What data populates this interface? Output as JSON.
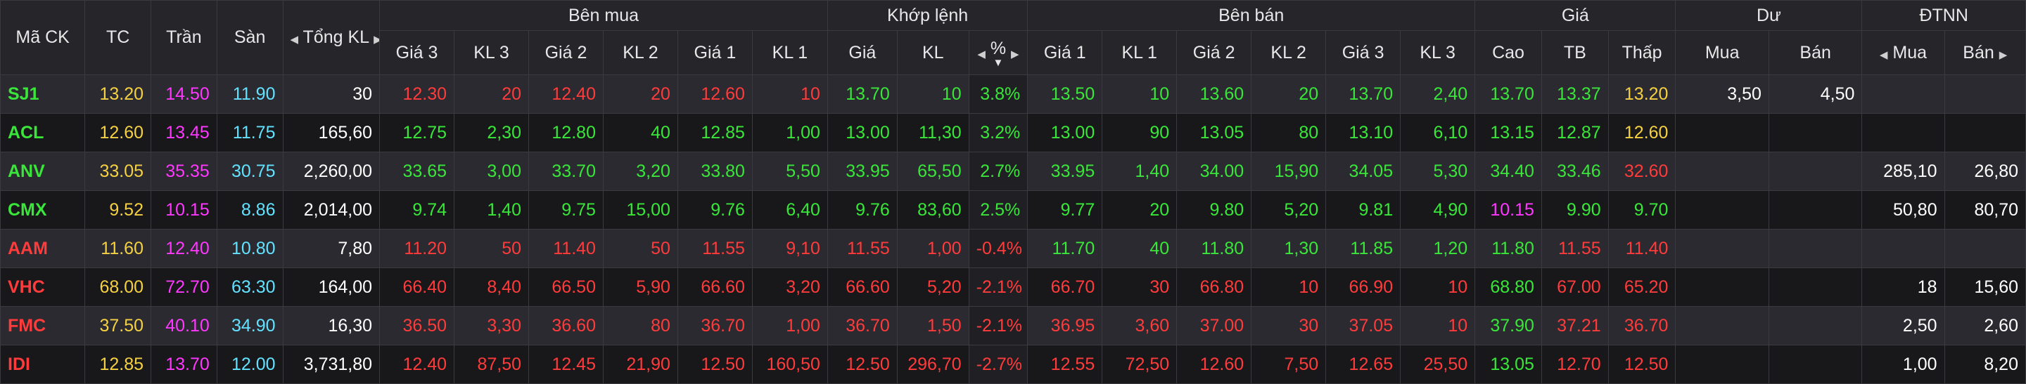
{
  "header": {
    "ma_ck": "Mã CK",
    "tc": "TC",
    "tran": "Trần",
    "san": "Sàn",
    "tong_kl": "Tổng KL",
    "ben_mua": "Bên mua",
    "khop_lenh": "Khớp lệnh",
    "ben_ban": "Bên bán",
    "gia": "Giá",
    "du": "Dư",
    "dtnn": "ĐTNN",
    "buy_cols": [
      "Giá 3",
      "KL 3",
      "Giá 2",
      "KL 2",
      "Giá 1",
      "KL 1"
    ],
    "match_gia": "Giá",
    "match_kl": "KL",
    "match_pct": "%",
    "sell_cols": [
      "Giá 1",
      "KL 1",
      "Giá 2",
      "KL 2",
      "Giá 3",
      "KL 3"
    ],
    "price_cols": [
      "Cao",
      "TB",
      "Thấp"
    ],
    "du_mua": "Mua",
    "du_ban": "Bán",
    "dtnn_mua": "Mua",
    "dtnn_ban": "Bán"
  },
  "colors": {
    "green": "#39e639",
    "red": "#ff3b3b",
    "yellow": "#f5d142",
    "purple": "#ff37ff",
    "cyan": "#62e2ff",
    "white": "#ffffff"
  },
  "rows": [
    {
      "sym": "SJ1",
      "tc": "13.20",
      "tran": "14.50",
      "san": "11.90",
      "tong_kl": "30",
      "b_g3": "12.30",
      "b_k3": "20",
      "b_g2": "12.40",
      "b_k2": "20",
      "b_g1": "12.60",
      "b_k1": "10",
      "m_g": "13.70",
      "m_k": "10",
      "m_p": "3.8%",
      "s_g1": "13.50",
      "s_k1": "10",
      "s_g2": "13.60",
      "s_k2": "20",
      "s_g3": "13.70",
      "s_k3": "2,40",
      "cao": "13.70",
      "tb": "13.37",
      "thap": "13.20",
      "du_mua": "3,50",
      "du_ban": "4,50",
      "nn_mua": "",
      "nn_ban": "",
      "c": {
        "sym": "green",
        "buy": "red",
        "match": "green",
        "sell": "green",
        "cao": "green",
        "tb": "green",
        "thap": "yellow"
      }
    },
    {
      "sym": "ACL",
      "tc": "12.60",
      "tran": "13.45",
      "san": "11.75",
      "tong_kl": "165,60",
      "b_g3": "12.75",
      "b_k3": "2,30",
      "b_g2": "12.80",
      "b_k2": "40",
      "b_g1": "12.85",
      "b_k1": "1,00",
      "m_g": "13.00",
      "m_k": "11,30",
      "m_p": "3.2%",
      "s_g1": "13.00",
      "s_k1": "90",
      "s_g2": "13.05",
      "s_k2": "80",
      "s_g3": "13.10",
      "s_k3": "6,10",
      "cao": "13.15",
      "tb": "12.87",
      "thap": "12.60",
      "du_mua": "",
      "du_ban": "",
      "nn_mua": "",
      "nn_ban": "",
      "c": {
        "sym": "green",
        "buy": "green",
        "match": "green",
        "sell": "green",
        "cao": "green",
        "tb": "green",
        "thap": "yellow"
      }
    },
    {
      "sym": "ANV",
      "tc": "33.05",
      "tran": "35.35",
      "san": "30.75",
      "tong_kl": "2,260,00",
      "b_g3": "33.65",
      "b_k3": "3,00",
      "b_g2": "33.70",
      "b_k2": "3,20",
      "b_g1": "33.80",
      "b_k1": "5,50",
      "m_g": "33.95",
      "m_k": "65,50",
      "m_p": "2.7%",
      "s_g1": "33.95",
      "s_k1": "1,40",
      "s_g2": "34.00",
      "s_k2": "15,90",
      "s_g3": "34.05",
      "s_k3": "5,30",
      "cao": "34.40",
      "tb": "33.46",
      "thap": "32.60",
      "du_mua": "",
      "du_ban": "",
      "nn_mua": "285,10",
      "nn_ban": "26,80",
      "c": {
        "sym": "green",
        "buy": "green",
        "match": "green",
        "sell": "green",
        "cao": "green",
        "tb": "green",
        "thap": "red"
      }
    },
    {
      "sym": "CMX",
      "tc": "9.52",
      "tran": "10.15",
      "san": "8.86",
      "tong_kl": "2,014,00",
      "b_g3": "9.74",
      "b_k3": "1,40",
      "b_g2": "9.75",
      "b_k2": "15,00",
      "b_g1": "9.76",
      "b_k1": "6,40",
      "m_g": "9.76",
      "m_k": "83,60",
      "m_p": "2.5%",
      "s_g1": "9.77",
      "s_k1": "20",
      "s_g2": "9.80",
      "s_k2": "5,20",
      "s_g3": "9.81",
      "s_k3": "4,90",
      "cao": "10.15",
      "tb": "9.90",
      "thap": "9.70",
      "du_mua": "",
      "du_ban": "",
      "nn_mua": "50,80",
      "nn_ban": "80,70",
      "c": {
        "sym": "green",
        "buy": "green",
        "match": "green",
        "sell": "green",
        "cao": "purple",
        "tb": "green",
        "thap": "green"
      }
    },
    {
      "sym": "AAM",
      "tc": "11.60",
      "tran": "12.40",
      "san": "10.80",
      "tong_kl": "7,80",
      "b_g3": "11.20",
      "b_k3": "50",
      "b_g2": "11.40",
      "b_k2": "50",
      "b_g1": "11.55",
      "b_k1": "9,10",
      "m_g": "11.55",
      "m_k": "1,00",
      "m_p": "-0.4%",
      "s_g1": "11.70",
      "s_k1": "40",
      "s_g2": "11.80",
      "s_k2": "1,30",
      "s_g3": "11.85",
      "s_k3": "1,20",
      "cao": "11.80",
      "tb": "11.55",
      "thap": "11.40",
      "du_mua": "",
      "du_ban": "",
      "nn_mua": "",
      "nn_ban": "",
      "c": {
        "sym": "red",
        "buy": "red",
        "match": "red",
        "sell": "green",
        "cao": "green",
        "tb": "red",
        "thap": "red"
      }
    },
    {
      "sym": "VHC",
      "tc": "68.00",
      "tran": "72.70",
      "san": "63.30",
      "tong_kl": "164,00",
      "b_g3": "66.40",
      "b_k3": "8,40",
      "b_g2": "66.50",
      "b_k2": "5,90",
      "b_g1": "66.60",
      "b_k1": "3,20",
      "m_g": "66.60",
      "m_k": "5,20",
      "m_p": "-2.1%",
      "s_g1": "66.70",
      "s_k1": "30",
      "s_g2": "66.80",
      "s_k2": "10",
      "s_g3": "66.90",
      "s_k3": "10",
      "cao": "68.80",
      "tb": "67.00",
      "thap": "65.20",
      "du_mua": "",
      "du_ban": "",
      "nn_mua": "18",
      "nn_ban": "15,60",
      "c": {
        "sym": "red",
        "buy": "red",
        "match": "red",
        "sell": "red",
        "cao": "green",
        "tb": "red",
        "thap": "red"
      }
    },
    {
      "sym": "FMC",
      "tc": "37.50",
      "tran": "40.10",
      "san": "34.90",
      "tong_kl": "16,30",
      "b_g3": "36.50",
      "b_k3": "3,30",
      "b_g2": "36.60",
      "b_k2": "80",
      "b_g1": "36.70",
      "b_k1": "1,00",
      "m_g": "36.70",
      "m_k": "1,50",
      "m_p": "-2.1%",
      "s_g1": "36.95",
      "s_k1": "3,60",
      "s_g2": "37.00",
      "s_k2": "30",
      "s_g3": "37.05",
      "s_k3": "10",
      "cao": "37.90",
      "tb": "37.21",
      "thap": "36.70",
      "du_mua": "",
      "du_ban": "",
      "nn_mua": "2,50",
      "nn_ban": "2,60",
      "c": {
        "sym": "red",
        "buy": "red",
        "match": "red",
        "sell": "red",
        "cao": "green",
        "tb": "red",
        "thap": "red"
      }
    },
    {
      "sym": "IDI",
      "tc": "12.85",
      "tran": "13.70",
      "san": "12.00",
      "tong_kl": "3,731,80",
      "b_g3": "12.40",
      "b_k3": "87,50",
      "b_g2": "12.45",
      "b_k2": "21,90",
      "b_g1": "12.50",
      "b_k1": "160,50",
      "m_g": "12.50",
      "m_k": "296,70",
      "m_p": "-2.7%",
      "s_g1": "12.55",
      "s_k1": "72,50",
      "s_g2": "12.60",
      "s_k2": "7,50",
      "s_g3": "12.65",
      "s_k3": "25,50",
      "cao": "13.05",
      "tb": "12.70",
      "thap": "12.50",
      "du_mua": "",
      "du_ban": "",
      "nn_mua": "1,00",
      "nn_ban": "8,20",
      "c": {
        "sym": "red",
        "buy": "red",
        "match": "red",
        "sell": "red",
        "cao": "green",
        "tb": "red",
        "thap": "red"
      }
    }
  ]
}
